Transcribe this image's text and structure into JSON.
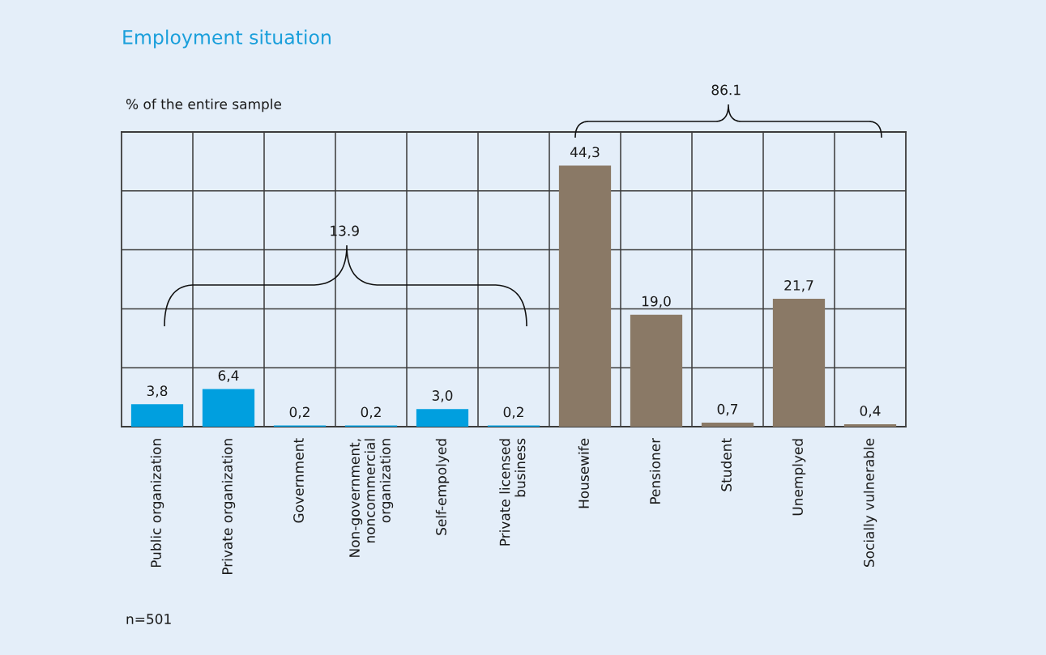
{
  "chart_data": {
    "type": "bar",
    "title": "Employment situation",
    "ylabel": "% of the entire sample",
    "categories": [
      "Public organization",
      "Private organization",
      "Government",
      "Non-government,\nnoncommercial\norganization",
      "Self-empolyed",
      "Private licensed\nbusiness",
      "Housewife",
      "Pensioner",
      "Student",
      "Unemplyed",
      "Socially vulnerable"
    ],
    "values": [
      3.8,
      6.4,
      0.2,
      0.2,
      3.0,
      0.2,
      44.3,
      19.0,
      0.7,
      21.7,
      0.4
    ],
    "colors": [
      "#009fdf",
      "#009fdf",
      "#009fdf",
      "#009fdf",
      "#009fdf",
      "#009fdf",
      "#8a7966",
      "#8a7966",
      "#8a7966",
      "#8a7966",
      "#8a7966"
    ],
    "value_labels": [
      "3,8",
      "6,4",
      "0,2",
      "0,2",
      "3,0",
      "0,2",
      "44,3",
      "19,0",
      "0,7",
      "21,7",
      "0,4"
    ],
    "ylim": [
      0,
      50
    ],
    "yticks": [
      {
        "value": 0,
        "label": null
      },
      {
        "value": 10,
        "label": null
      },
      {
        "value": 20,
        "label": null
      },
      {
        "value": 30,
        "label": null
      },
      {
        "value": 40,
        "label": null
      },
      {
        "value": 50,
        "label": null
      }
    ],
    "tick_labels": "x",
    "grid": true,
    "annotations": [
      "13.9",
      "86.1",
      "n=501"
    ]
  }
}
